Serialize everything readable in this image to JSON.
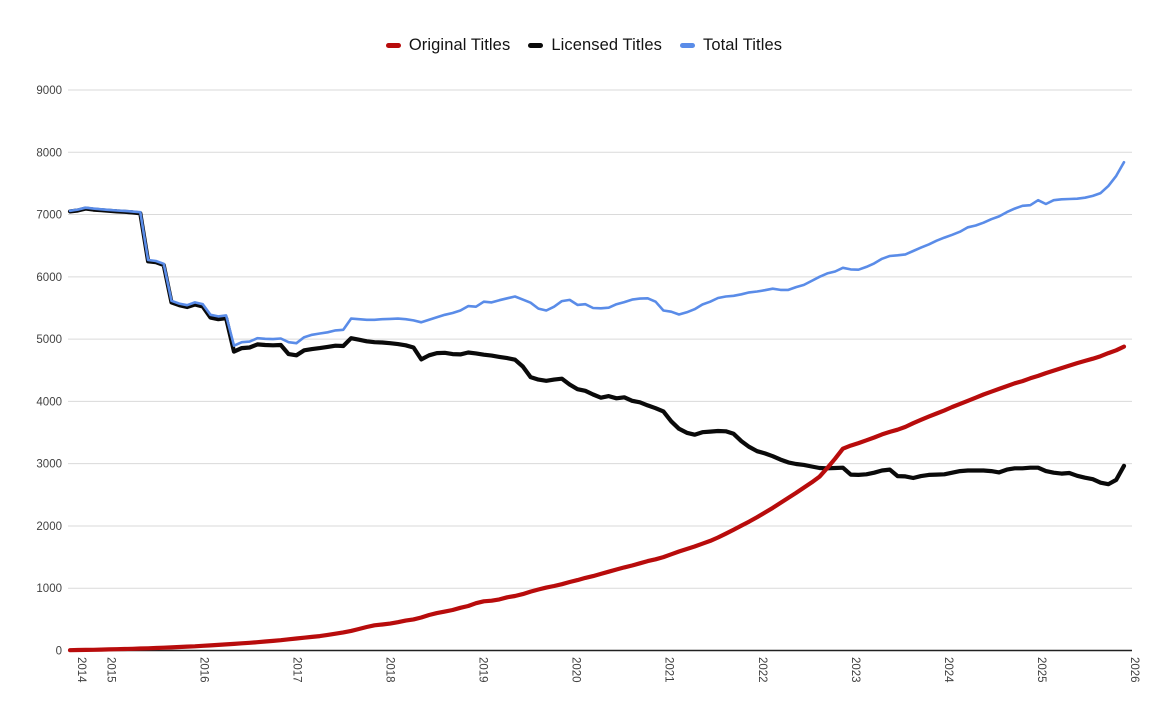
{
  "legend": {
    "items": [
      {
        "label": "Original Titles",
        "color": "#b80c0c"
      },
      {
        "label": "Licensed Titles",
        "color": "#0a0a0a"
      },
      {
        "label": "Total Titles",
        "color": "#5a8ce8"
      }
    ]
  },
  "chart_data": {
    "type": "line",
    "title": "",
    "xlabel": "",
    "ylabel": "",
    "grid": true,
    "legend_position": "top-center",
    "x_start_month": "2014-09",
    "x_end_month": "2025-12",
    "x_tick_labels": [
      "2014",
      "2015",
      "2016",
      "2017",
      "2018",
      "2019",
      "2020",
      "2021",
      "2022",
      "2023",
      "2024",
      "2025",
      "2026"
    ],
    "y_tick_labels": [
      "0",
      "1000",
      "2000",
      "3000",
      "4000",
      "5000",
      "6000",
      "7000",
      "8000",
      "9000"
    ],
    "ylim": [
      0,
      9000
    ],
    "colors": {
      "original": "#b80c0c",
      "licensed": "#0a0a0a",
      "total": "#5a8ce8",
      "grid": "#dadada",
      "axis": "#212121"
    },
    "series": [
      {
        "name": "Original Titles",
        "color": "#b80c0c",
        "stroke_width": 4.2,
        "values": [
          5,
          8,
          10,
          12,
          15,
          18,
          21,
          24,
          28,
          32,
          36,
          40,
          45,
          50,
          56,
          62,
          68,
          75,
          82,
          90,
          98,
          106,
          115,
          124,
          134,
          144,
          154,
          166,
          180,
          192,
          205,
          218,
          232,
          250,
          270,
          290,
          315,
          345,
          378,
          405,
          418,
          432,
          455,
          480,
          500,
          530,
          570,
          600,
          625,
          650,
          685,
          715,
          760,
          790,
          800,
          820,
          855,
          875,
          905,
          945,
          980,
          1010,
          1035,
          1065,
          1100,
          1130,
          1165,
          1195,
          1230,
          1265,
          1300,
          1335,
          1365,
          1400,
          1435,
          1465,
          1500,
          1545,
          1590,
          1630,
          1670,
          1715,
          1760,
          1815,
          1875,
          1940,
          2005,
          2070,
          2140,
          2215,
          2290,
          2370,
          2450,
          2530,
          2615,
          2700,
          2790,
          2930,
          3080,
          3240,
          3290,
          3330,
          3375,
          3420,
          3470,
          3510,
          3545,
          3590,
          3650,
          3705,
          3755,
          3805,
          3855,
          3910,
          3960,
          4010,
          4060,
          4110,
          4155,
          4200,
          4245,
          4290,
          4325,
          4370,
          4410,
          4455,
          4495,
          4535,
          4575,
          4615,
          4650,
          4685,
          4725,
          4775,
          4820,
          4880
        ]
      },
      {
        "name": "Licensed Titles",
        "color": "#0a0a0a",
        "stroke_width": 4.2,
        "values": [
          7050,
          7065,
          7095,
          7080,
          7070,
          7060,
          7050,
          7045,
          7035,
          7020,
          6250,
          6235,
          6190,
          5590,
          5545,
          5515,
          5555,
          5525,
          5345,
          5320,
          5335,
          4800,
          4855,
          4865,
          4915,
          4905,
          4900,
          4905,
          4760,
          4740,
          4820,
          4840,
          4855,
          4875,
          4895,
          4890,
          5015,
          4990,
          4965,
          4950,
          4945,
          4935,
          4920,
          4900,
          4865,
          4675,
          4740,
          4775,
          4780,
          4760,
          4755,
          4785,
          4770,
          4750,
          4735,
          4715,
          4695,
          4670,
          4560,
          4390,
          4350,
          4330,
          4350,
          4365,
          4270,
          4195,
          4170,
          4110,
          4060,
          4085,
          4050,
          4065,
          4010,
          3985,
          3935,
          3890,
          3840,
          3680,
          3560,
          3495,
          3465,
          3505,
          3515,
          3525,
          3520,
          3480,
          3360,
          3270,
          3200,
          3165,
          3120,
          3065,
          3020,
          2995,
          2980,
          2955,
          2930,
          2925,
          2930,
          2935,
          2825,
          2820,
          2830,
          2855,
          2890,
          2905,
          2800,
          2795,
          2770,
          2800,
          2820,
          2825,
          2830,
          2855,
          2880,
          2890,
          2890,
          2890,
          2880,
          2860,
          2905,
          2925,
          2925,
          2935,
          2935,
          2880,
          2855,
          2840,
          2850,
          2805,
          2775,
          2750,
          2695,
          2670,
          2740,
          2965
        ]
      },
      {
        "name": "Total Titles",
        "color": "#5a8ce8",
        "stroke_width": 2.6,
        "values": [
          7060,
          7080,
          7110,
          7095,
          7085,
          7075,
          7065,
          7058,
          7048,
          7038,
          6270,
          6255,
          6210,
          5615,
          5570,
          5545,
          5590,
          5560,
          5390,
          5365,
          5380,
          4895,
          4950,
          4960,
          5015,
          5005,
          5000,
          5010,
          4950,
          4935,
          5030,
          5070,
          5090,
          5110,
          5140,
          5150,
          5330,
          5320,
          5310,
          5310,
          5320,
          5325,
          5330,
          5320,
          5300,
          5270,
          5310,
          5350,
          5390,
          5420,
          5460,
          5530,
          5520,
          5600,
          5590,
          5625,
          5655,
          5685,
          5635,
          5585,
          5490,
          5460,
          5520,
          5610,
          5630,
          5550,
          5560,
          5500,
          5495,
          5505,
          5560,
          5595,
          5635,
          5650,
          5655,
          5600,
          5460,
          5440,
          5395,
          5430,
          5480,
          5555,
          5600,
          5660,
          5685,
          5695,
          5720,
          5750,
          5765,
          5785,
          5810,
          5790,
          5790,
          5835,
          5870,
          5935,
          6000,
          6055,
          6085,
          6145,
          6120,
          6115,
          6160,
          6215,
          6290,
          6335,
          6345,
          6360,
          6415,
          6470,
          6520,
          6580,
          6630,
          6675,
          6725,
          6795,
          6825,
          6870,
          6925,
          6970,
          7040,
          7095,
          7140,
          7150,
          7230,
          7170,
          7230,
          7245,
          7250,
          7255,
          7270,
          7300,
          7345,
          7460,
          7620,
          7840
        ]
      }
    ]
  }
}
